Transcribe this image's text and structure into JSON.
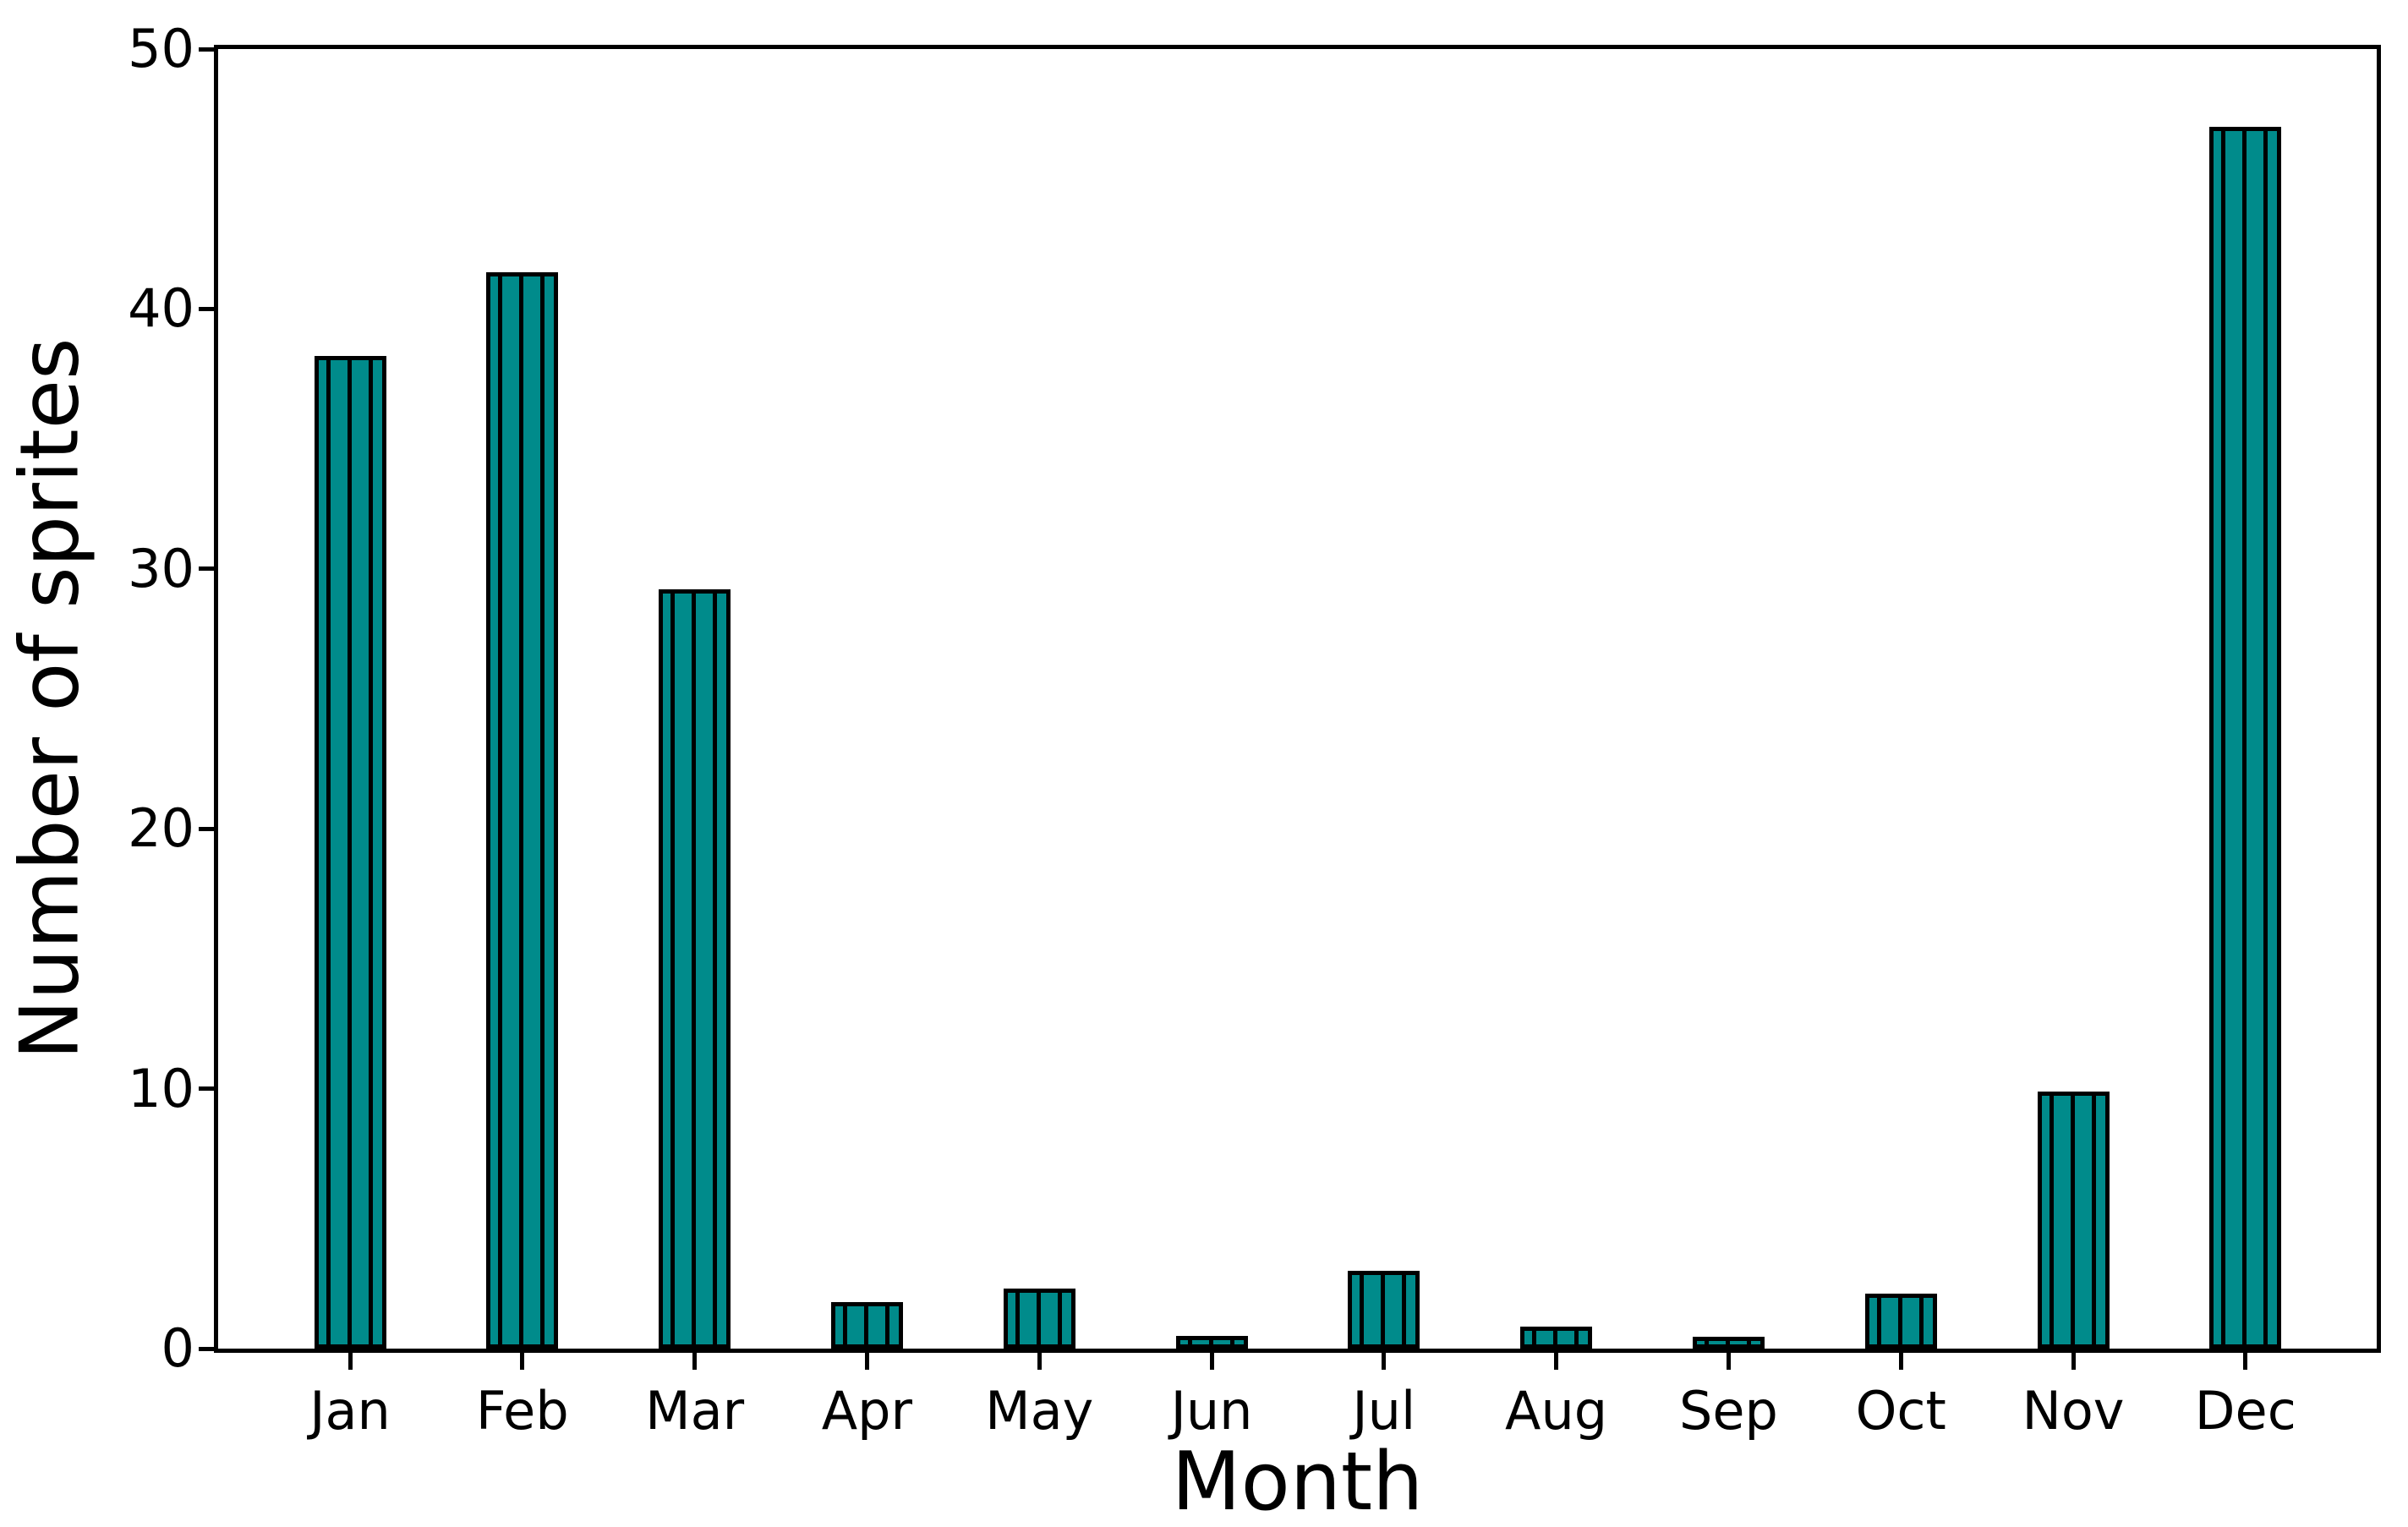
{
  "chart_data": {
    "type": "bar",
    "title": "",
    "xlabel": "Month",
    "ylabel": "Number of sprites",
    "categories": [
      "Jan",
      "Feb",
      "Mar",
      "Apr",
      "May",
      "Jun",
      "Jul",
      "Aug",
      "Sep",
      "Oct",
      "Nov",
      "Dec"
    ],
    "values": [
      38.2,
      41.4,
      29.2,
      1.8,
      2.3,
      0.5,
      3.0,
      0.85,
      0.45,
      2.1,
      9.9,
      47.0
    ],
    "ylim": [
      0,
      50
    ],
    "yticks": [
      0,
      10,
      20,
      30,
      40,
      50
    ],
    "bar_color": "#008B8B",
    "bar_edge_color": "#000000",
    "hatch": "vertical-lines",
    "grid": false,
    "legend_position": "none"
  }
}
